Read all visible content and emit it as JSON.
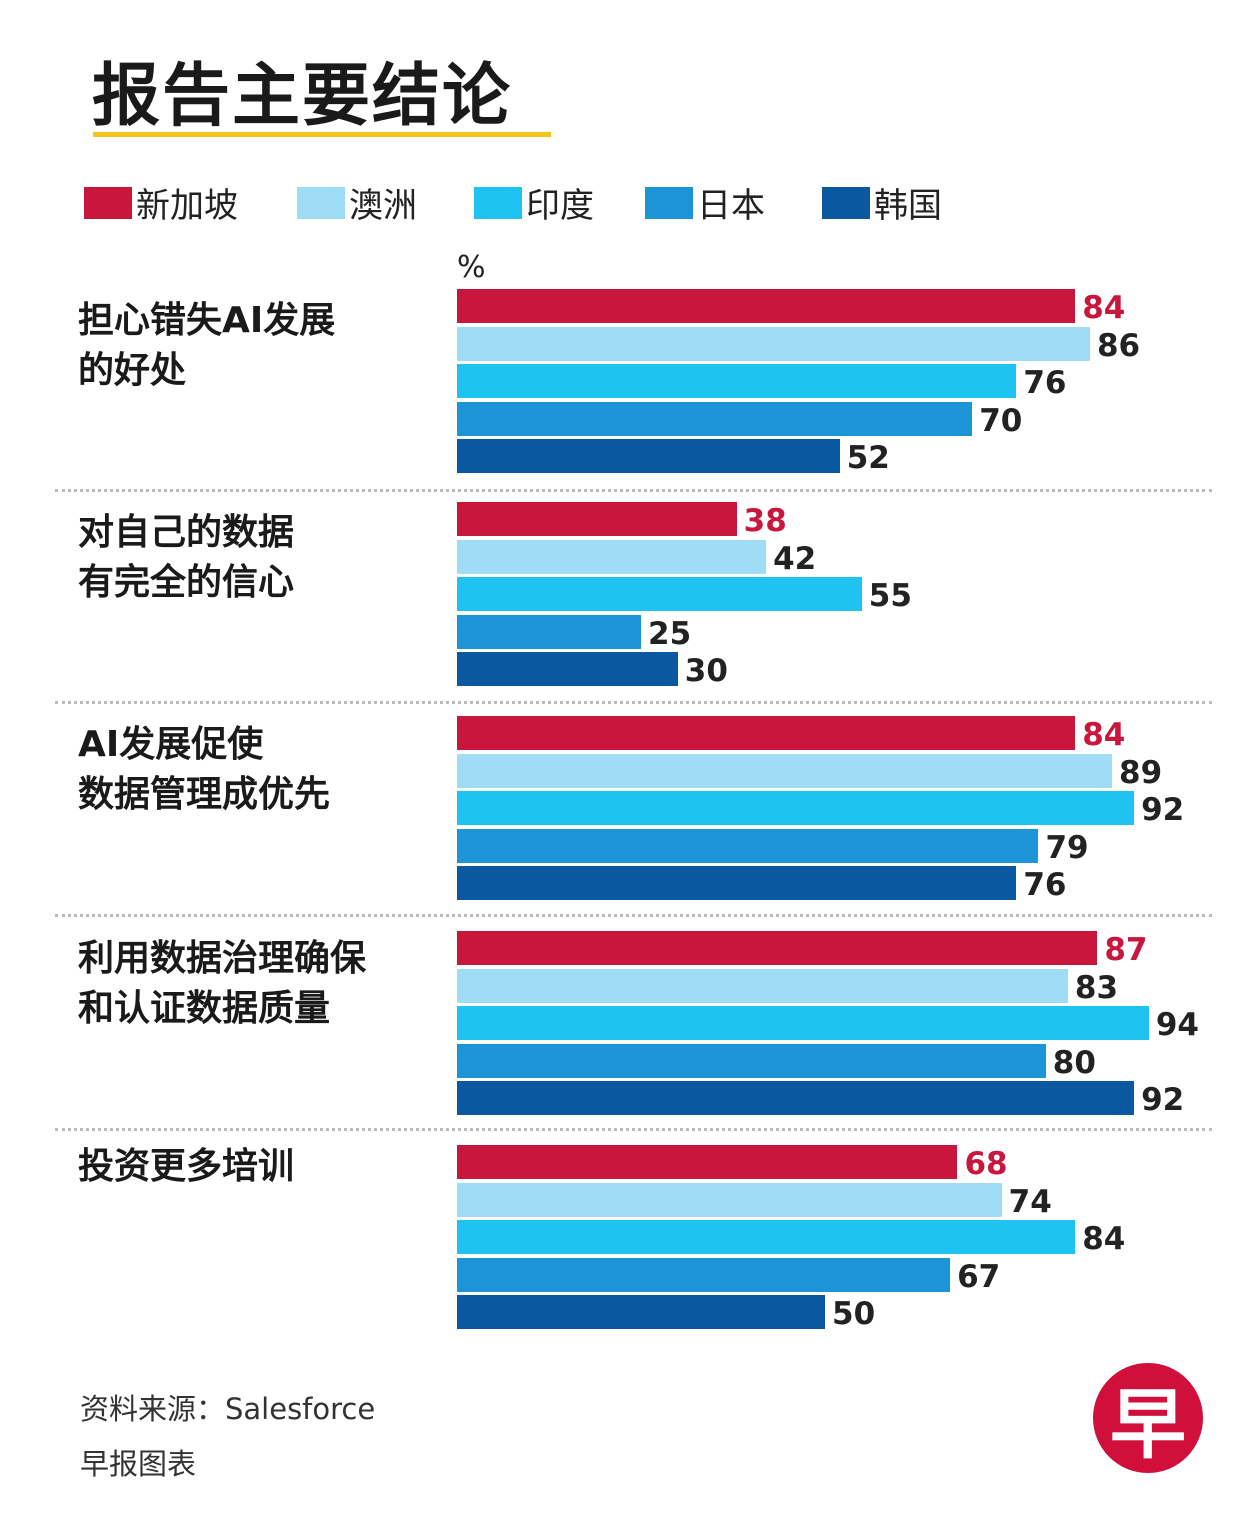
{
  "title": "报告主要结论",
  "footer": {
    "source": "资料来源：Salesforce",
    "credit": "早报图表"
  },
  "logo_text": "早",
  "chart_data": {
    "type": "bar",
    "orientation": "horizontal",
    "unit_label": "%",
    "xlim": [
      0,
      100
    ],
    "categories": [
      "担心错失AI发展\n的好处",
      "对自己的数据\n有完全的信心",
      "AI发展促使\n数据管理成优先",
      "利用数据治理确保\n和认证数据质量",
      "投资更多培训"
    ],
    "series": [
      {
        "name": "新加坡",
        "color": "#c8163c",
        "values": [
          84,
          38,
          84,
          87,
          68
        ]
      },
      {
        "name": "澳洲",
        "color": "#9fdcf6",
        "values": [
          86,
          42,
          89,
          83,
          74
        ]
      },
      {
        "name": "印度",
        "color": "#1fc3f1",
        "values": [
          76,
          55,
          92,
          94,
          84
        ]
      },
      {
        "name": "日本",
        "color": "#1c94d5",
        "values": [
          70,
          25,
          79,
          80,
          67
        ]
      },
      {
        "name": "韩国",
        "color": "#0a58a0",
        "values": [
          52,
          30,
          76,
          92,
          50
        ]
      }
    ],
    "highlight_series_label_color": "#c8163c"
  }
}
